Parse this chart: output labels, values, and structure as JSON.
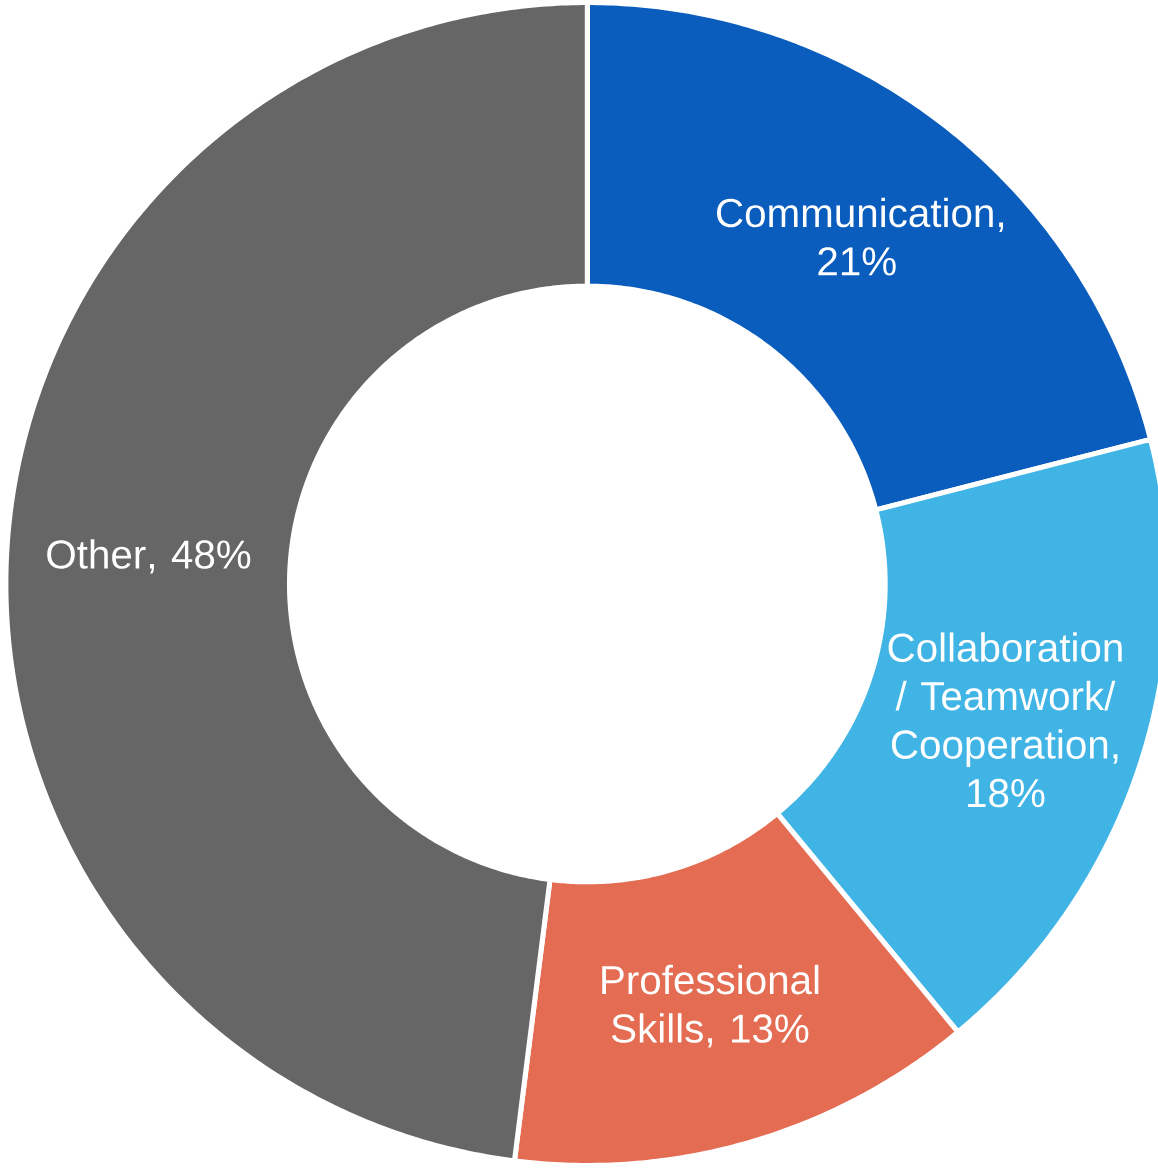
{
  "chart_data": {
    "type": "donut",
    "categories": [
      "Communication",
      "Collaboration / Teamwork/ Cooperation",
      "Professional Skills",
      "Other"
    ],
    "values": [
      21,
      18,
      13,
      48
    ],
    "value_labels": [
      ", 21%",
      ", 18%",
      ", 13%",
      ", 48%"
    ],
    "colors": [
      "#0a5cbd",
      "#41b4e6",
      "#e46c52",
      "#666666"
    ]
  }
}
